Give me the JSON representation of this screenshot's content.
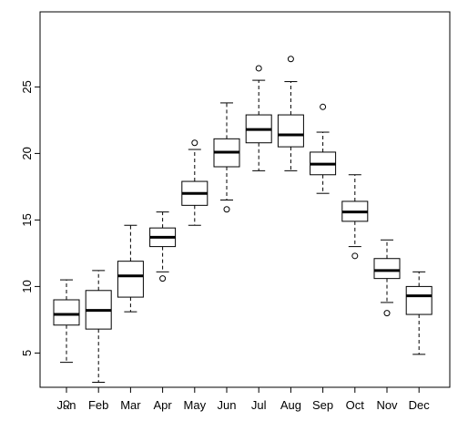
{
  "chart_data": {
    "type": "boxplot",
    "title": "",
    "xlabel": "",
    "ylabel": "",
    "ylim": [
      0,
      27.5
    ],
    "yticks": [
      5,
      10,
      15,
      20,
      25
    ],
    "yticks_labels": [
      "5",
      "10",
      "15",
      "20",
      "25"
    ],
    "categories": [
      "Jan",
      "Feb",
      "Mar",
      "Apr",
      "May",
      "Jun",
      "Jul",
      "Aug",
      "Sep",
      "Oct",
      "Nov",
      "Dec"
    ],
    "boxes": [
      {
        "min": 4.3,
        "q1": 7.1,
        "median": 7.9,
        "q3": 9.0,
        "max": 10.5,
        "outliers": [
          1.2
        ]
      },
      {
        "min": 2.8,
        "q1": 6.8,
        "median": 8.2,
        "q3": 9.7,
        "max": 11.2,
        "outliers": []
      },
      {
        "min": 8.1,
        "q1": 9.2,
        "median": 10.8,
        "q3": 11.9,
        "max": 14.6,
        "outliers": []
      },
      {
        "min": 11.1,
        "q1": 13.0,
        "median": 13.7,
        "q3": 14.4,
        "max": 15.6,
        "outliers": [
          10.6
        ]
      },
      {
        "min": 14.6,
        "q1": 16.1,
        "median": 17.0,
        "q3": 17.9,
        "max": 20.3,
        "outliers": [
          20.8
        ]
      },
      {
        "min": 16.5,
        "q1": 19.0,
        "median": 20.1,
        "q3": 21.1,
        "max": 23.8,
        "outliers": [
          15.8
        ]
      },
      {
        "min": 18.7,
        "q1": 20.8,
        "median": 21.8,
        "q3": 22.9,
        "max": 25.5,
        "outliers": [
          26.4
        ]
      },
      {
        "min": 18.7,
        "q1": 20.5,
        "median": 21.4,
        "q3": 22.9,
        "max": 25.4,
        "outliers": [
          27.1
        ]
      },
      {
        "min": 17.0,
        "q1": 18.4,
        "median": 19.2,
        "q3": 20.1,
        "max": 21.6,
        "outliers": [
          23.5
        ]
      },
      {
        "min": 13.0,
        "q1": 14.9,
        "median": 15.6,
        "q3": 16.4,
        "max": 18.4,
        "outliers": [
          12.3
        ]
      },
      {
        "min": 8.8,
        "q1": 10.6,
        "median": 11.2,
        "q3": 12.1,
        "max": 13.5,
        "outliers": [
          8.0
        ]
      },
      {
        "min": 4.9,
        "q1": 7.9,
        "median": 9.3,
        "q3": 10.0,
        "max": 11.1,
        "outliers": []
      }
    ]
  }
}
